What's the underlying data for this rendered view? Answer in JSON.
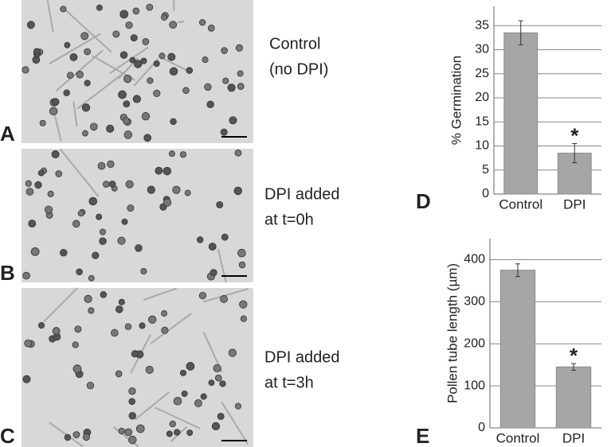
{
  "panels": [
    {
      "label": "A",
      "caption": [
        "Control",
        "(no DPI)"
      ]
    },
    {
      "label": "B",
      "caption": [
        "DPI added",
        "at t=0h"
      ]
    },
    {
      "label": "C",
      "caption": [
        "DPI added",
        "at t=3h"
      ]
    }
  ],
  "chart_data": [
    {
      "type": "bar",
      "panel_label": "D",
      "ylabel": "% Germination",
      "categories": [
        "Control",
        "DPI"
      ],
      "values": [
        33.5,
        8.5
      ],
      "errors": [
        2.5,
        2
      ],
      "color": "#a6a6a6",
      "ylim": [
        0,
        39
      ],
      "yticks": [
        0,
        5,
        10,
        15,
        20,
        25,
        30,
        35
      ],
      "grid": true,
      "annotations": [
        {
          "category": "DPI",
          "text": "*"
        }
      ]
    },
    {
      "type": "bar",
      "panel_label": "E",
      "ylabel": "Pollen tube length (µm)",
      "categories": [
        "Control",
        "DPI"
      ],
      "values": [
        375,
        145
      ],
      "errors": [
        15,
        8
      ],
      "color": "#a6a6a6",
      "ylim": [
        0,
        450
      ],
      "yticks": [
        0,
        100,
        200,
        300,
        400
      ],
      "grid": true,
      "annotations": [
        {
          "category": "DPI",
          "text": "*"
        }
      ]
    }
  ]
}
